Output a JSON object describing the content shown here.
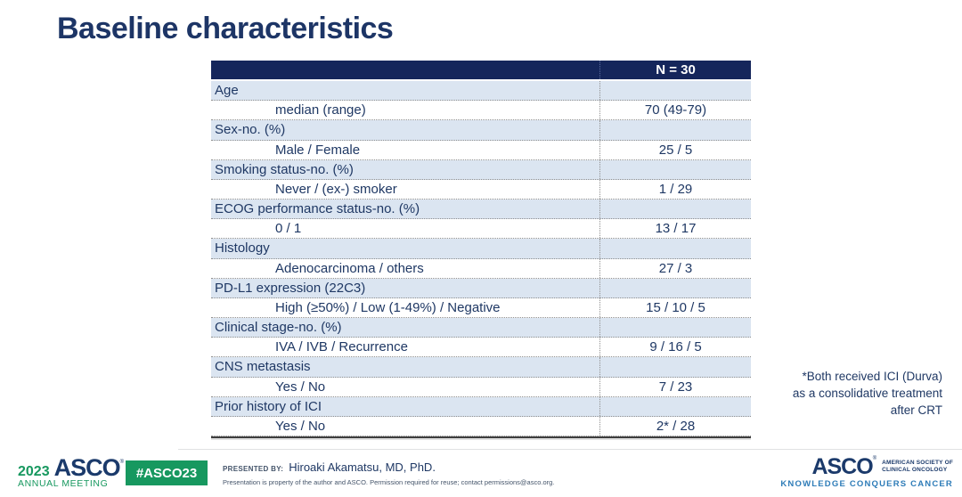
{
  "title": "Baseline characteristics",
  "colors": {
    "navy_text": "#1f3864",
    "table_header_bg": "#15265b",
    "category_row_blue": "#dbe5f1",
    "asco_green": "#17985f",
    "asco_navy": "#1b3a6b",
    "tagline_blue": "#2e7cb8"
  },
  "table": {
    "header_value": "N = 30",
    "rows": [
      {
        "label": "Age",
        "value": "",
        "type": "category"
      },
      {
        "label": "median (range)",
        "value": "70 (49-79)",
        "type": "sub"
      },
      {
        "label": "Sex-no. (%)",
        "value": "",
        "type": "category"
      },
      {
        "label": "Male / Female",
        "value": "25 / 5",
        "type": "sub"
      },
      {
        "label": "Smoking status-no. (%)",
        "value": "",
        "type": "category"
      },
      {
        "label": "Never / (ex-) smoker",
        "value": "1 / 29",
        "type": "sub"
      },
      {
        "label": "ECOG performance status-no. (%)",
        "value": "",
        "type": "category"
      },
      {
        "label": "0 / 1",
        "value": "13 / 17",
        "type": "sub"
      },
      {
        "label": "Histology",
        "value": "",
        "type": "category"
      },
      {
        "label": "Adenocarcinoma / others",
        "value": "27 / 3",
        "type": "sub"
      },
      {
        "label": "PD-L1 expression (22C3)",
        "value": "",
        "type": "category"
      },
      {
        "label": "High (≥50%) / Low (1-49%) / Negative",
        "value": "15 / 10 / 5",
        "type": "sub"
      },
      {
        "label": "Clinical stage-no. (%)",
        "value": "",
        "type": "category"
      },
      {
        "label": "IVA / IVB / Recurrence",
        "value": "9 / 16 / 5",
        "type": "sub"
      },
      {
        "label": "CNS metastasis",
        "value": "",
        "type": "category"
      },
      {
        "label": "Yes / No",
        "value": "7 / 23",
        "type": "sub"
      },
      {
        "label": "Prior history of ICI",
        "value": "",
        "type": "category"
      },
      {
        "label": "Yes / No",
        "value": "2* / 28",
        "type": "sub"
      }
    ]
  },
  "annotation": {
    "text": "*Both received ICI (Durva)\nas a consolidative treatment\nafter CRT"
  },
  "footer": {
    "meeting_logo": {
      "year": "2023",
      "asco": "ASCO",
      "reg_mark": "®",
      "subtitle": "ANNUAL MEETING"
    },
    "hashtag_badge": "#ASCO23",
    "presented_by_label": "PRESENTED BY:",
    "presenter": "Hiroaki Akamatsu, MD, PhD.",
    "permission": "Presentation is property of the author and ASCO. Permission required for reuse; contact permissions@asco.org.",
    "asco_logo": {
      "asco": "ASCO",
      "reg_mark": "®",
      "org_line1": "AMERICAN SOCIETY OF",
      "org_line2": "CLINICAL ONCOLOGY",
      "tagline": "KNOWLEDGE CONQUERS CANCER"
    }
  }
}
